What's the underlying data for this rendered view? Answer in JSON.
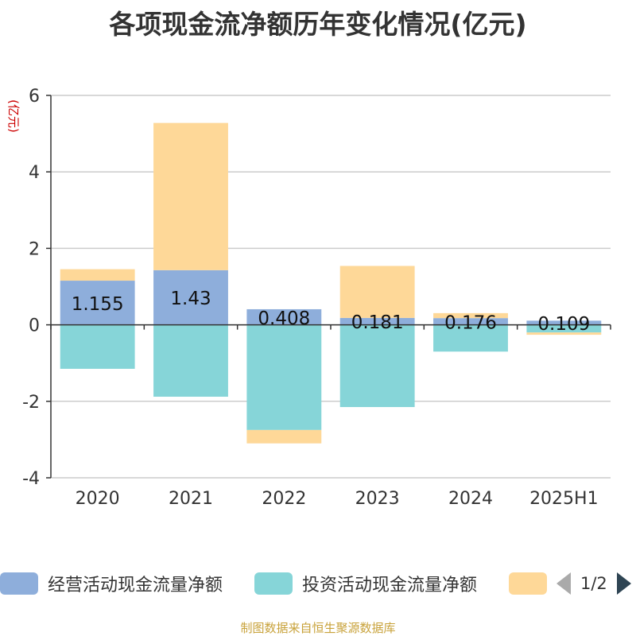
{
  "title": "各项现金流净额历年变化情况(亿元)",
  "source": "制图数据来自恒生聚源数据库",
  "legend_page": "1/2",
  "chart_data": {
    "type": "bar",
    "stacked": true,
    "categories": [
      "2020",
      "2021",
      "2022",
      "2023",
      "2024",
      "2025H1"
    ],
    "ylabel": "(亿元)",
    "ylim": [
      -4,
      6
    ],
    "yticks": [
      -4,
      -2,
      0,
      2,
      4,
      6
    ],
    "grid": true,
    "series": [
      {
        "name": "经营活动现金流量净额",
        "color": "#8eaedb",
        "values": [
          1.155,
          1.43,
          0.408,
          0.181,
          0.176,
          0.109
        ],
        "labels": [
          "1.155",
          "1.43",
          "0.408",
          "0.181",
          "0.176",
          "0.109"
        ]
      },
      {
        "name": "投资活动现金流量净额",
        "color": "#86d5d8",
        "values": [
          -1.15,
          -1.88,
          -2.75,
          -2.15,
          -0.7,
          -0.2
        ]
      },
      {
        "name": "",
        "color": "#fed898",
        "values": [
          0.3,
          3.85,
          -0.35,
          1.36,
          0.13,
          -0.06
        ]
      }
    ]
  }
}
